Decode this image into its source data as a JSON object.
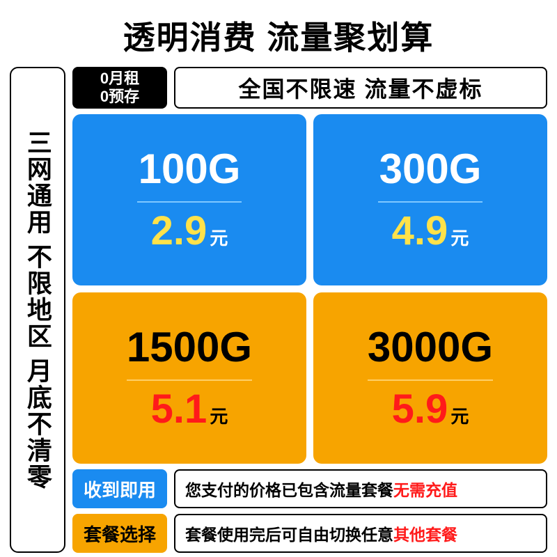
{
  "title": "透明消费 流量聚划算",
  "leftColumn": {
    "text": "三网通用 不限地区 月底不清零"
  },
  "colors": {
    "blue": "#1a8bf0",
    "orange": "#f7a400",
    "yellowText": "#ffe24a",
    "redText": "#ff1a1a",
    "black": "#000000",
    "white": "#ffffff",
    "lightBlueBorder": "#7fc8ff",
    "lightOrangeBorder": "#ffcf66"
  },
  "badges": {
    "black": {
      "line1": "0月租",
      "line2": "0预存"
    },
    "outline": "全国不限速 流量不虚标"
  },
  "plans": [
    {
      "amount": "100G",
      "price": "2.9",
      "unit": "元",
      "bg": "#1a8bf0",
      "amountColor": "#ffffff",
      "priceColor": "#ffe24a",
      "unitColor": "#ffffff",
      "dividerColor": "#7fc8ff",
      "dividerWidth": "150px"
    },
    {
      "amount": "300G",
      "price": "4.9",
      "unit": "元",
      "bg": "#1a8bf0",
      "amountColor": "#ffffff",
      "priceColor": "#ffe24a",
      "unitColor": "#ffffff",
      "dividerColor": "#7fc8ff",
      "dividerWidth": "150px"
    },
    {
      "amount": "1500G",
      "price": "5.1",
      "unit": "元",
      "bg": "#f7a400",
      "amountColor": "#000000",
      "priceColor": "#ff1a1a",
      "unitColor": "#000000",
      "dividerColor": "#ffcf66",
      "dividerWidth": "180px"
    },
    {
      "amount": "3000G",
      "price": "5.9",
      "unit": "元",
      "bg": "#f7a400",
      "amountColor": "#000000",
      "priceColor": "#ff1a1a",
      "unitColor": "#000000",
      "dividerColor": "#ffcf66",
      "dividerWidth": "180px"
    }
  ],
  "infoRows": [
    {
      "tagText": "收到即用",
      "tagBg": "#1a8bf0",
      "tagColor": "#ffffff",
      "descMain": "您支付的价格已包含流量套餐 ",
      "descAccent": "无需充值",
      "accentColor": "#ff1a1a"
    },
    {
      "tagText": "套餐选择",
      "tagBg": "#f7a400",
      "tagColor": "#000000",
      "descMain": "套餐使用完后可自由切换任意 ",
      "descAccent": "其他套餐",
      "accentColor": "#ff1a1a"
    }
  ]
}
